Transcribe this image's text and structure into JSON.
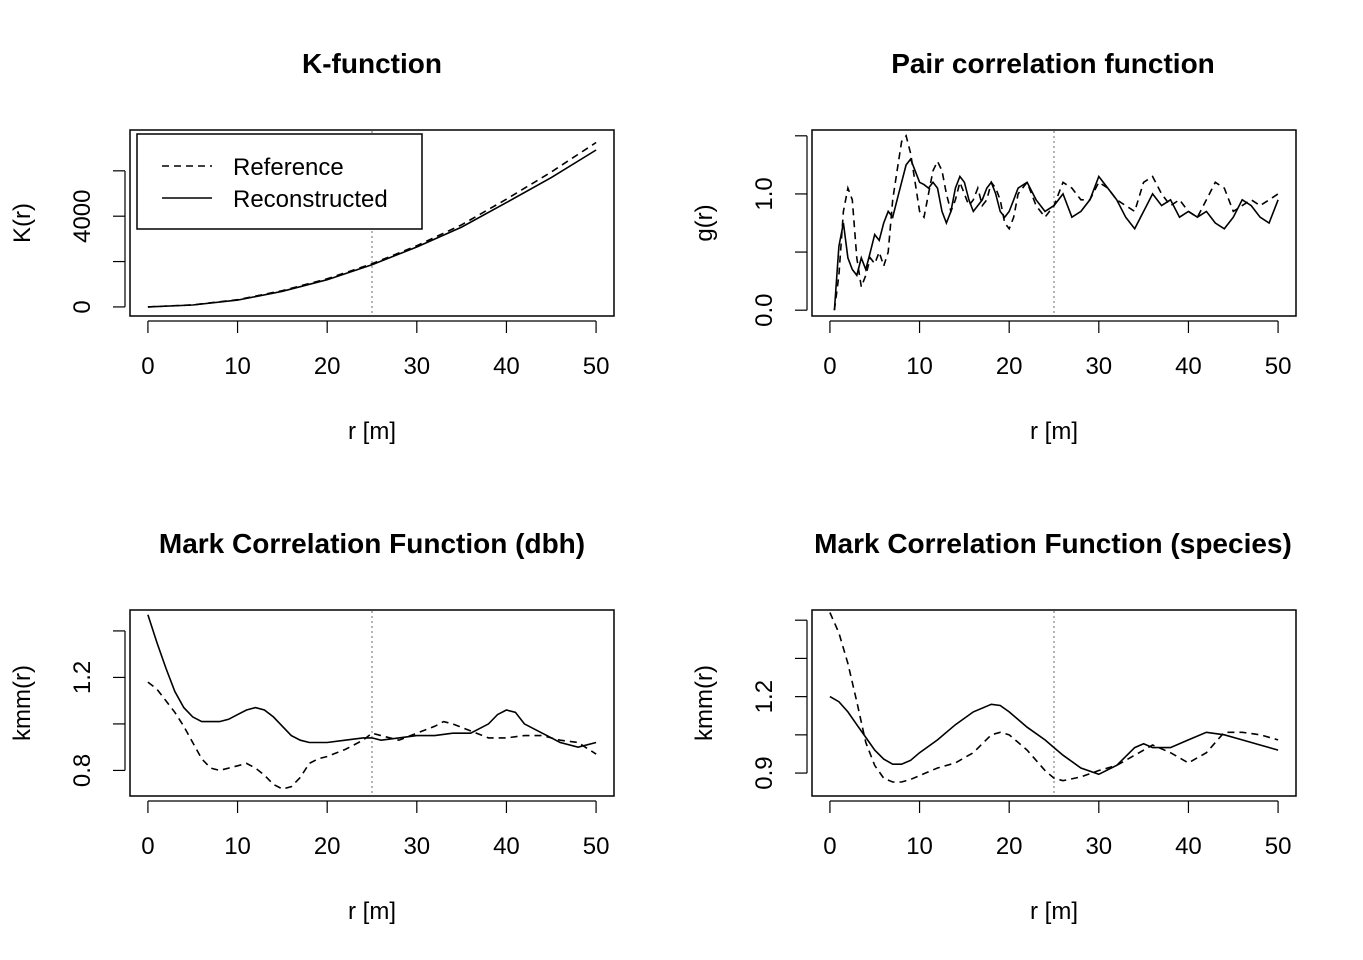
{
  "figure": {
    "panels": [
      {
        "title": "K-function",
        "xlabel": "r [m]",
        "ylabel": "K(r)"
      },
      {
        "title": "Pair correlation function",
        "xlabel": "r [m]",
        "ylabel": "g(r)"
      },
      {
        "title": "Mark Correlation Function (dbh)",
        "xlabel": "r [m]",
        "ylabel": "kmm(r)"
      },
      {
        "title": "Mark Correlation Function (species)",
        "xlabel": "r [m]",
        "ylabel": "kmm(r)"
      }
    ],
    "legend": {
      "reference_label": "Reference",
      "reconstructed_label": "Reconstructed"
    }
  },
  "chart_data": [
    {
      "type": "line",
      "title": "K-function",
      "xlabel": "r [m]",
      "ylabel": "K(r)",
      "xlim": [
        -2,
        52
      ],
      "ylim": [
        -400,
        7800
      ],
      "xticks": [
        0,
        10,
        20,
        30,
        40,
        50
      ],
      "yticks": [
        0,
        2000,
        4000,
        6000
      ],
      "ytick_labels": [
        "0",
        "",
        "4000",
        ""
      ],
      "vline": 25,
      "legend": "top-left",
      "series": [
        {
          "name": "Reference",
          "style": "dashed",
          "x": [
            0,
            5,
            10,
            15,
            20,
            25,
            30,
            35,
            40,
            45,
            50
          ],
          "y": [
            0,
            90,
            320,
            720,
            1240,
            1900,
            2700,
            3620,
            4750,
            5950,
            7250
          ]
        },
        {
          "name": "Reconstructed",
          "style": "solid",
          "x": [
            0,
            5,
            10,
            15,
            20,
            25,
            30,
            35,
            40,
            45,
            50
          ],
          "y": [
            0,
            85,
            300,
            690,
            1200,
            1860,
            2640,
            3520,
            4600,
            5700,
            6920
          ]
        }
      ]
    },
    {
      "type": "line",
      "title": "Pair correlation function",
      "xlabel": "r [m]",
      "ylabel": "g(r)",
      "xlim": [
        -2,
        52
      ],
      "ylim": [
        -0.05,
        1.55
      ],
      "xticks": [
        0,
        10,
        20,
        30,
        40,
        50
      ],
      "yticks": [
        0,
        0.5,
        1.0,
        1.5
      ],
      "ytick_labels": [
        "0.0",
        "",
        "1.0",
        ""
      ],
      "vline": 25,
      "series": [
        {
          "name": "Reference",
          "style": "dashed",
          "x": [
            0.5,
            1,
            1.5,
            2,
            2.5,
            3,
            3.5,
            4,
            4.5,
            5,
            5.5,
            6,
            6.5,
            7,
            7.5,
            8,
            8.5,
            9,
            9.5,
            10,
            10.5,
            11,
            11.5,
            12,
            12.5,
            13,
            13.5,
            14,
            14.5,
            15,
            15.5,
            16,
            16.5,
            17,
            17.5,
            18,
            18.5,
            19,
            19.5,
            20,
            20.5,
            21,
            22,
            23,
            24,
            25,
            26,
            27,
            28,
            29,
            30,
            31,
            32,
            33,
            34,
            35,
            36,
            37,
            38,
            39,
            40,
            41,
            42,
            43,
            44,
            45,
            46,
            47,
            48,
            49,
            50
          ],
          "y": [
            0,
            0.3,
            0.85,
            1.05,
            0.95,
            0.45,
            0.2,
            0.3,
            0.45,
            0.4,
            0.5,
            0.38,
            0.5,
            0.95,
            1.2,
            1.45,
            1.5,
            1.35,
            1.1,
            0.85,
            0.8,
            1.0,
            1.2,
            1.28,
            1.2,
            1.0,
            0.85,
            0.95,
            1.1,
            1.0,
            0.9,
            0.95,
            1.05,
            0.9,
            0.95,
            1.1,
            1.05,
            0.95,
            0.75,
            0.7,
            0.8,
            1.0,
            1.1,
            0.9,
            0.8,
            0.9,
            1.1,
            1.05,
            0.95,
            0.95,
            1.1,
            1.05,
            0.95,
            0.9,
            0.85,
            1.1,
            1.15,
            1.0,
            0.9,
            0.95,
            0.85,
            0.8,
            0.95,
            1.1,
            1.05,
            0.85,
            0.9,
            0.95,
            0.9,
            0.95,
            1.0
          ]
        },
        {
          "name": "Reconstructed",
          "style": "solid",
          "x": [
            0.5,
            1,
            1.5,
            2,
            2.5,
            3,
            3.5,
            4,
            4.5,
            5,
            5.5,
            6,
            6.5,
            7,
            7.5,
            8,
            8.5,
            9,
            9.5,
            10,
            10.5,
            11,
            11.5,
            12,
            12.5,
            13,
            13.5,
            14,
            14.5,
            15,
            15.5,
            16,
            16.5,
            17,
            17.5,
            18,
            18.5,
            19,
            19.5,
            20,
            20.5,
            21,
            22,
            23,
            24,
            25,
            26,
            27,
            28,
            29,
            30,
            31,
            32,
            33,
            34,
            35,
            36,
            37,
            38,
            39,
            40,
            41,
            42,
            43,
            44,
            45,
            46,
            47,
            48,
            49,
            50
          ],
          "y": [
            0,
            0.55,
            0.75,
            0.45,
            0.35,
            0.3,
            0.45,
            0.35,
            0.5,
            0.65,
            0.6,
            0.75,
            0.85,
            0.8,
            0.95,
            1.1,
            1.25,
            1.3,
            1.2,
            1.1,
            1.08,
            1.05,
            1.1,
            1.05,
            0.85,
            0.75,
            0.85,
            1.05,
            1.15,
            1.1,
            0.95,
            0.85,
            0.9,
            0.95,
            1.05,
            1.1,
            1.0,
            0.85,
            0.8,
            0.85,
            0.95,
            1.05,
            1.1,
            0.95,
            0.85,
            0.9,
            1.0,
            0.8,
            0.85,
            0.95,
            1.15,
            1.05,
            0.95,
            0.8,
            0.7,
            0.85,
            1.0,
            0.9,
            0.95,
            0.8,
            0.85,
            0.8,
            0.85,
            0.75,
            0.7,
            0.8,
            0.95,
            0.9,
            0.8,
            0.75,
            0.95
          ]
        }
      ]
    },
    {
      "type": "line",
      "title": "Mark Correlation Function (dbh)",
      "xlabel": "r [m]",
      "ylabel": "kmm(r)",
      "xlim": [
        -2,
        52
      ],
      "ylim": [
        0.69,
        1.49
      ],
      "xticks": [
        0,
        10,
        20,
        30,
        40,
        50
      ],
      "yticks": [
        0.8,
        1.0,
        1.2,
        1.4
      ],
      "ytick_labels": [
        "0.8",
        "",
        "1.2",
        ""
      ],
      "vline": 25,
      "series": [
        {
          "name": "Reference",
          "style": "dashed",
          "x": [
            0,
            1,
            2,
            3,
            4,
            5,
            6,
            7,
            8,
            9,
            10,
            11,
            12,
            13,
            14,
            15,
            16,
            17,
            18,
            19,
            20,
            22,
            24,
            25,
            26,
            28,
            30,
            32,
            33,
            34,
            36,
            38,
            40,
            42,
            44,
            46,
            48,
            50
          ],
          "y": [
            1.18,
            1.15,
            1.1,
            1.05,
            0.99,
            0.92,
            0.85,
            0.81,
            0.8,
            0.81,
            0.82,
            0.83,
            0.81,
            0.78,
            0.74,
            0.72,
            0.73,
            0.77,
            0.83,
            0.85,
            0.86,
            0.89,
            0.93,
            0.96,
            0.95,
            0.93,
            0.96,
            0.99,
            1.01,
            1.0,
            0.97,
            0.94,
            0.94,
            0.95,
            0.95,
            0.93,
            0.92,
            0.87
          ]
        },
        {
          "name": "Reconstructed",
          "style": "solid",
          "x": [
            0,
            1,
            2,
            3,
            4,
            5,
            6,
            7,
            8,
            9,
            10,
            11,
            12,
            13,
            14,
            15,
            16,
            17,
            18,
            19,
            20,
            22,
            24,
            25,
            26,
            28,
            30,
            32,
            34,
            36,
            38,
            39,
            40,
            41,
            42,
            44,
            46,
            48,
            50
          ],
          "y": [
            1.47,
            1.35,
            1.24,
            1.14,
            1.07,
            1.03,
            1.01,
            1.01,
            1.01,
            1.02,
            1.04,
            1.06,
            1.07,
            1.06,
            1.03,
            0.99,
            0.95,
            0.93,
            0.92,
            0.92,
            0.92,
            0.93,
            0.94,
            0.94,
            0.93,
            0.94,
            0.95,
            0.95,
            0.96,
            0.96,
            1.0,
            1.04,
            1.06,
            1.05,
            1.0,
            0.96,
            0.92,
            0.9,
            0.92
          ]
        }
      ]
    },
    {
      "type": "line",
      "title": "Mark Correlation Function (species)",
      "xlabel": "r [m]",
      "ylabel": "kmm(r)",
      "xlim": [
        -2,
        52
      ],
      "ylim": [
        0.81,
        1.54
      ],
      "xticks": [
        0,
        10,
        20,
        30,
        40,
        50
      ],
      "yticks": [
        0.9,
        1.05,
        1.2,
        1.35,
        1.5
      ],
      "ytick_labels": [
        "0.9",
        "",
        "1.2",
        "",
        ""
      ],
      "vline": 25,
      "series": [
        {
          "name": "Reference",
          "style": "dashed",
          "x": [
            0,
            1,
            2,
            3,
            4,
            5,
            6,
            7,
            8,
            9,
            10,
            12,
            14,
            16,
            18,
            19,
            20,
            22,
            24,
            25,
            26,
            28,
            30,
            32,
            34,
            36,
            38,
            40,
            42,
            44,
            46,
            48,
            50
          ],
          "y": [
            1.53,
            1.45,
            1.33,
            1.18,
            1.02,
            0.93,
            0.88,
            0.865,
            0.865,
            0.875,
            0.89,
            0.92,
            0.94,
            0.98,
            1.05,
            1.06,
            1.05,
            0.99,
            0.91,
            0.88,
            0.87,
            0.885,
            0.91,
            0.93,
            0.97,
            1.01,
            0.98,
            0.94,
            0.98,
            1.06,
            1.06,
            1.05,
            1.03
          ]
        },
        {
          "name": "Reconstructed",
          "style": "solid",
          "x": [
            0,
            1,
            2,
            3,
            4,
            5,
            6,
            7,
            8,
            9,
            10,
            12,
            14,
            16,
            18,
            19,
            20,
            22,
            24,
            25,
            26,
            28,
            30,
            32,
            34,
            35,
            36,
            38,
            40,
            42,
            44,
            46,
            48,
            50
          ],
          "y": [
            1.2,
            1.18,
            1.14,
            1.09,
            1.04,
            0.99,
            0.955,
            0.935,
            0.935,
            0.95,
            0.98,
            1.03,
            1.09,
            1.14,
            1.17,
            1.165,
            1.14,
            1.08,
            1.03,
            1.0,
            0.97,
            0.92,
            0.895,
            0.93,
            1.0,
            1.015,
            1.0,
            1.0,
            1.03,
            1.06,
            1.05,
            1.03,
            1.01,
            0.99
          ]
        }
      ]
    }
  ]
}
